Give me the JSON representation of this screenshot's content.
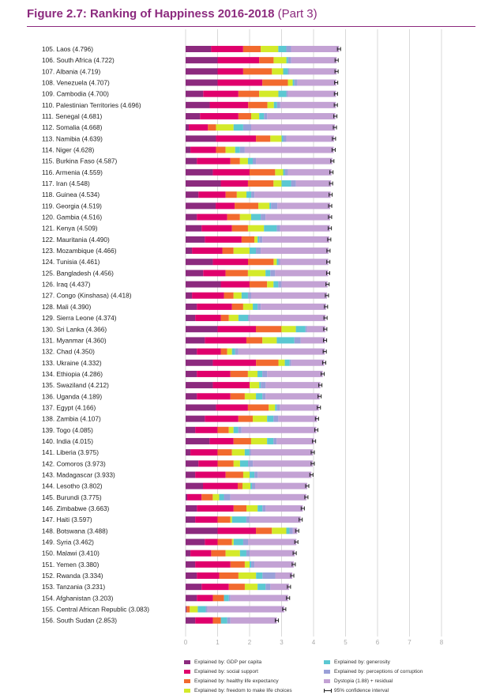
{
  "title": "Figure 2.7: Ranking of Happiness 2016-2018",
  "title_part": "(Part 3)",
  "colors": {
    "title": "#8c2a7e",
    "components": [
      "#8c2a7e",
      "#e0006c",
      "#f26a2e",
      "#d4ea2a",
      "#5bc8d2",
      "#9aa0d8",
      "#c3a2d4"
    ],
    "ci": "#222222",
    "grid": "#d9d9d9"
  },
  "legend": [
    {
      "label": "Explained by: GDP per capita",
      "color": "#8c2a7e"
    },
    {
      "label": "Explained by: social support",
      "color": "#e0006c"
    },
    {
      "label": "Explained by: healthy life expectancy",
      "color": "#f26a2e"
    },
    {
      "label": "Explained by: freedom to make life choices",
      "color": "#d4ea2a"
    },
    {
      "label": "Explained by: generosity",
      "color": "#5bc8d2"
    },
    {
      "label": "Explained by: perceptions of corruption",
      "color": "#9aa0d8"
    },
    {
      "label": "Dystopia (1.88) + residual",
      "color": "#c3a2d4"
    },
    {
      "label": "95% confidence interval",
      "icon": "ci-icon"
    }
  ],
  "chart_data": {
    "type": "bar",
    "orientation": "horizontal",
    "stacked": true,
    "xlim": [
      0,
      8
    ],
    "x_ticks": [
      "0",
      "1",
      "2",
      "3",
      "4",
      "5",
      "6",
      "7",
      "8"
    ],
    "grid": true,
    "legend_placement": "bottom",
    "series_names": [
      "Explained by: GDP per capita",
      "Explained by: social support",
      "Explained by: healthy life expectancy",
      "Explained by: freedom to make life choices",
      "Explained by: generosity",
      "Explained by: perceptions of corruption",
      "Dystopia (1.88) + residual"
    ],
    "rows": [
      {
        "label": "105. Laos (4.796)",
        "score": 4.796,
        "parts": [
          0.8,
          1.0,
          0.55,
          0.55,
          0.25,
          0.15,
          1.5
        ]
      },
      {
        "label": "106. South Africa (4.722)",
        "score": 4.722,
        "parts": [
          1.0,
          1.3,
          0.45,
          0.4,
          0.05,
          0.1,
          1.42
        ]
      },
      {
        "label": "107. Albania (4.719)",
        "score": 4.719,
        "parts": [
          1.0,
          0.8,
          0.9,
          0.35,
          0.15,
          0.05,
          1.47
        ]
      },
      {
        "label": "108. Venezuela (4.707)",
        "score": 4.707,
        "parts": [
          1.0,
          1.4,
          0.8,
          0.15,
          0.05,
          0.1,
          1.21
        ]
      },
      {
        "label": "109. Cambodia (4.700)",
        "score": 4.7,
        "parts": [
          0.55,
          1.1,
          0.65,
          0.6,
          0.25,
          0.05,
          1.5
        ]
      },
      {
        "label": "110. Palestinian Territories (4.696)",
        "score": 4.696,
        "parts": [
          0.75,
          1.2,
          0.6,
          0.2,
          0.1,
          0.1,
          1.73
        ]
      },
      {
        "label": "111. Senegal (4.681)",
        "score": 4.681,
        "parts": [
          0.45,
          1.2,
          0.4,
          0.25,
          0.15,
          0.1,
          2.13
        ]
      },
      {
        "label": "112. Somalia (4.668)",
        "score": 4.668,
        "parts": [
          0.1,
          0.6,
          0.25,
          0.55,
          0.3,
          0.25,
          2.62
        ]
      },
      {
        "label": "113. Namibia (4.639)",
        "score": 4.639,
        "parts": [
          0.95,
          1.25,
          0.45,
          0.35,
          0.05,
          0.1,
          1.49
        ]
      },
      {
        "label": "114. Niger (4.628)",
        "score": 4.628,
        "parts": [
          0.15,
          0.8,
          0.3,
          0.3,
          0.15,
          0.15,
          2.78
        ]
      },
      {
        "label": "115. Burkina Faso (4.587)",
        "score": 4.587,
        "parts": [
          0.35,
          1.05,
          0.3,
          0.25,
          0.15,
          0.1,
          2.39
        ]
      },
      {
        "label": "116. Armenia (4.559)",
        "score": 4.559,
        "parts": [
          0.85,
          1.15,
          0.8,
          0.25,
          0.05,
          0.1,
          1.36
        ]
      },
      {
        "label": "117. Iran (4.548)",
        "score": 4.548,
        "parts": [
          1.1,
          0.85,
          0.8,
          0.25,
          0.3,
          0.15,
          1.1
        ]
      },
      {
        "label": "118. Guinea (4.534)",
        "score": 4.534,
        "parts": [
          0.4,
          0.85,
          0.35,
          0.3,
          0.15,
          0.1,
          2.38
        ]
      },
      {
        "label": "119. Georgia (4.519)",
        "score": 4.519,
        "parts": [
          0.95,
          0.6,
          0.75,
          0.35,
          0.05,
          0.2,
          1.67
        ]
      },
      {
        "label": "120. Gambia (4.516)",
        "score": 4.516,
        "parts": [
          0.35,
          0.95,
          0.4,
          0.35,
          0.3,
          0.15,
          2.02
        ]
      },
      {
        "label": "121. Kenya (4.509)",
        "score": 4.509,
        "parts": [
          0.5,
          0.95,
          0.5,
          0.5,
          0.4,
          0.1,
          1.56
        ]
      },
      {
        "label": "122. Mauritania (4.490)",
        "score": 4.49,
        "parts": [
          0.6,
          1.15,
          0.4,
          0.1,
          0.05,
          0.1,
          2.09
        ]
      },
      {
        "label": "123. Mozambique (4.466)",
        "score": 4.466,
        "parts": [
          0.2,
          0.95,
          0.35,
          0.5,
          0.2,
          0.15,
          2.12
        ]
      },
      {
        "label": "124. Tunisia (4.461)",
        "score": 4.461,
        "parts": [
          0.85,
          1.1,
          0.8,
          0.1,
          0.05,
          0.05,
          1.51
        ]
      },
      {
        "label": "125. Bangladesh (4.456)",
        "score": 4.456,
        "parts": [
          0.55,
          0.7,
          0.7,
          0.55,
          0.15,
          0.15,
          1.66
        ]
      },
      {
        "label": "126. Iraq (4.437)",
        "score": 4.437,
        "parts": [
          1.1,
          0.9,
          0.55,
          0.2,
          0.15,
          0.1,
          1.44
        ]
      },
      {
        "label": "127. Congo (Kinshasa) (4.418)",
        "score": 4.418,
        "parts": [
          0.2,
          1.0,
          0.3,
          0.25,
          0.2,
          0.1,
          2.37
        ]
      },
      {
        "label": "128. Mali (4.390)",
        "score": 4.39,
        "parts": [
          0.35,
          1.1,
          0.35,
          0.3,
          0.15,
          0.1,
          2.04
        ]
      },
      {
        "label": "129. Sierra Leone (4.374)",
        "score": 4.374,
        "parts": [
          0.3,
          0.8,
          0.25,
          0.3,
          0.3,
          0.05,
          2.37
        ]
      },
      {
        "label": "130. Sri Lanka (4.366)",
        "score": 4.366,
        "parts": [
          1.0,
          1.2,
          0.8,
          0.45,
          0.3,
          0.05,
          0.57
        ]
      },
      {
        "label": "131. Myanmar (4.360)",
        "score": 4.36,
        "parts": [
          0.6,
          1.3,
          0.5,
          0.45,
          0.55,
          0.2,
          0.76
        ]
      },
      {
        "label": "132. Chad (4.350)",
        "score": 4.35,
        "parts": [
          0.35,
          0.75,
          0.2,
          0.15,
          0.1,
          0.1,
          2.7
        ]
      },
      {
        "label": "133. Ukraine (4.332)",
        "score": 4.332,
        "parts": [
          0.85,
          1.35,
          0.7,
          0.2,
          0.15,
          0.05,
          1.03
        ]
      },
      {
        "label": "134. Ethiopia (4.286)",
        "score": 4.286,
        "parts": [
          0.35,
          1.05,
          0.55,
          0.3,
          0.15,
          0.15,
          1.74
        ]
      },
      {
        "label": "135. Swaziland (4.212)",
        "score": 4.212,
        "parts": [
          0.85,
          1.15,
          0.0,
          0.3,
          0.05,
          0.15,
          1.71
        ]
      },
      {
        "label": "136. Uganda (4.189)",
        "score": 4.189,
        "parts": [
          0.35,
          1.05,
          0.45,
          0.35,
          0.2,
          0.1,
          1.69
        ]
      },
      {
        "label": "137. Egypt (4.166)",
        "score": 4.166,
        "parts": [
          0.95,
          1.0,
          0.65,
          0.2,
          0.05,
          0.1,
          1.22
        ]
      },
      {
        "label": "138. Zambia (4.107)",
        "score": 4.107,
        "parts": [
          0.6,
          1.05,
          0.45,
          0.45,
          0.2,
          0.15,
          1.21
        ]
      },
      {
        "label": "139. Togo (4.085)",
        "score": 4.085,
        "parts": [
          0.3,
          0.7,
          0.35,
          0.15,
          0.15,
          0.1,
          2.34
        ]
      },
      {
        "label": "140. India (4.015)",
        "score": 4.015,
        "parts": [
          0.75,
          0.75,
          0.55,
          0.5,
          0.2,
          0.1,
          1.17
        ]
      },
      {
        "label": "141. Liberia (3.975)",
        "score": 3.975,
        "parts": [
          0.15,
          0.85,
          0.45,
          0.4,
          0.15,
          0.05,
          1.93
        ]
      },
      {
        "label": "142. Comoros (3.973)",
        "score": 3.973,
        "parts": [
          0.4,
          0.6,
          0.5,
          0.2,
          0.25,
          0.15,
          1.87
        ]
      },
      {
        "label": "143. Madagascar (3.933)",
        "score": 3.933,
        "parts": [
          0.3,
          0.95,
          0.55,
          0.2,
          0.15,
          0.1,
          1.68
        ]
      },
      {
        "label": "144. Lesotho (3.802)",
        "score": 3.802,
        "parts": [
          0.55,
          1.1,
          0.15,
          0.25,
          0.05,
          0.1,
          1.65
        ]
      },
      {
        "label": "145. Burundi (3.775)",
        "score": 3.775,
        "parts": [
          0.05,
          0.45,
          0.35,
          0.2,
          0.15,
          0.2,
          2.38
        ]
      },
      {
        "label": "146. Zimbabwe (3.663)",
        "score": 3.663,
        "parts": [
          0.35,
          1.15,
          0.4,
          0.35,
          0.15,
          0.1,
          1.16
        ]
      },
      {
        "label": "147. Haiti (3.597)",
        "score": 3.597,
        "parts": [
          0.3,
          0.7,
          0.4,
          0.05,
          0.45,
          0.1,
          1.6
        ]
      },
      {
        "label": "148. Botswana (3.488)",
        "score": 3.488,
        "parts": [
          1.0,
          1.2,
          0.5,
          0.45,
          0.1,
          0.1,
          0.14
        ]
      },
      {
        "label": "149. Syria (3.462)",
        "score": 3.462,
        "parts": [
          0.6,
          0.4,
          0.45,
          0.05,
          0.3,
          0.15,
          1.51
        ]
      },
      {
        "label": "150. Malawi (3.410)",
        "score": 3.41,
        "parts": [
          0.15,
          0.65,
          0.45,
          0.45,
          0.2,
          0.1,
          1.41
        ]
      },
      {
        "label": "151. Yemen (3.380)",
        "score": 3.38,
        "parts": [
          0.3,
          1.1,
          0.45,
          0.15,
          0.05,
          0.1,
          1.23
        ]
      },
      {
        "label": "152. Rwanda (3.334)",
        "score": 3.334,
        "parts": [
          0.35,
          0.7,
          0.6,
          0.55,
          0.2,
          0.4,
          0.53
        ]
      },
      {
        "label": "153. Tanzania (3.231)",
        "score": 3.231,
        "parts": [
          0.5,
          0.85,
          0.5,
          0.4,
          0.25,
          0.15,
          0.58
        ]
      },
      {
        "label": "154. Afghanistan (3.203)",
        "score": 3.203,
        "parts": [
          0.35,
          0.5,
          0.35,
          0.0,
          0.15,
          0.05,
          1.8
        ]
      },
      {
        "label": "155. Central African Republic (3.083)",
        "score": 3.083,
        "parts": [
          0.03,
          0.0,
          0.1,
          0.25,
          0.25,
          0.05,
          2.4
        ]
      },
      {
        "label": "156. South Sudan (2.853)",
        "score": 2.853,
        "parts": [
          0.3,
          0.55,
          0.25,
          0.0,
          0.2,
          0.1,
          1.45
        ]
      }
    ]
  }
}
